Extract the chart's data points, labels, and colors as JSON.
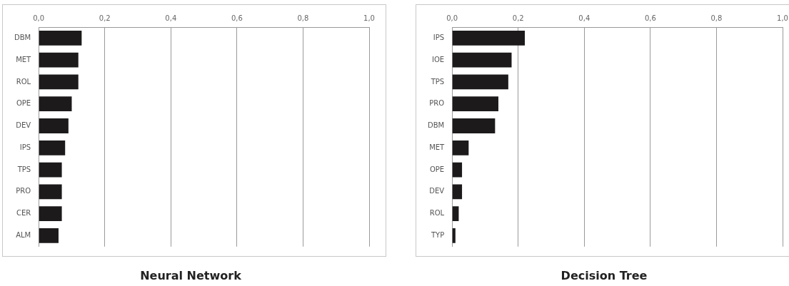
{
  "chart_data": [
    {
      "type": "bar",
      "orientation": "horizontal",
      "title": "Neural Network",
      "categories": [
        "DBM",
        "MET",
        "ROL",
        "OPE",
        "DEV",
        "IPS",
        "TPS",
        "PRO",
        "CER",
        "ALM"
      ],
      "values": [
        0.13,
        0.12,
        0.12,
        0.1,
        0.09,
        0.08,
        0.07,
        0.07,
        0.07,
        0.06
      ],
      "color": "#1c1a1a",
      "xlim": [
        0,
        1
      ],
      "xticks": [
        {
          "value": 0,
          "label": "0,0"
        },
        {
          "value": 0.2,
          "label": "0,2"
        },
        {
          "value": 0.4,
          "label": "0,4"
        },
        {
          "value": 0.6,
          "label": "0,6"
        },
        {
          "value": 0.8,
          "label": "0,8"
        },
        {
          "value": 1,
          "label": "1,0"
        }
      ],
      "grid": "x"
    },
    {
      "type": "bar",
      "orientation": "horizontal",
      "title": "Decision Tree",
      "categories": [
        "IPS",
        "IOE",
        "TPS",
        "PRO",
        "DBM",
        "MET",
        "OPE",
        "DEV",
        "ROL",
        "TYP"
      ],
      "values": [
        0.22,
        0.18,
        0.17,
        0.14,
        0.13,
        0.05,
        0.03,
        0.03,
        0.02,
        0.01
      ],
      "color": "#1c1a1a",
      "xlim": [
        0,
        1
      ],
      "xticks": [
        {
          "value": 0,
          "label": "0,0"
        },
        {
          "value": 0.2,
          "label": "0,2"
        },
        {
          "value": 0.4,
          "label": "0,4"
        },
        {
          "value": 0.6,
          "label": "0,6"
        },
        {
          "value": 0.8,
          "label": "0,8"
        },
        {
          "value": 1,
          "label": "1,0"
        }
      ],
      "grid": "x"
    }
  ]
}
